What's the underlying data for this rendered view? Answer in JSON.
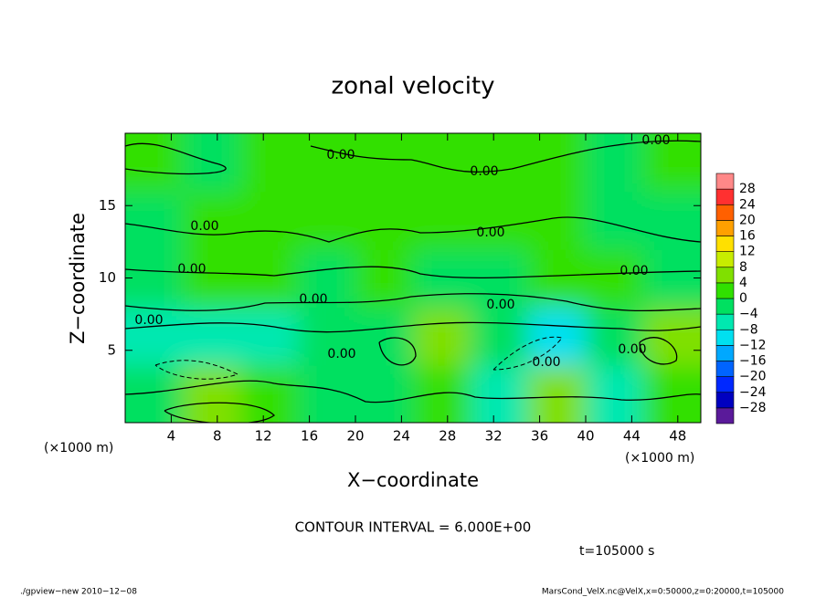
{
  "chart_data": {
    "type": "contour",
    "title": "zonal velocity",
    "xlabel": "X−coordinate",
    "ylabel": "Z−coordinate",
    "x_unit_labels": [
      "(×1000 m)",
      "(×1000 m)"
    ],
    "xlim": [
      0,
      50
    ],
    "xticks": [
      4,
      8,
      12,
      16,
      20,
      24,
      28,
      32,
      36,
      40,
      44,
      48
    ],
    "ylim": [
      0,
      20
    ],
    "yticks": [
      5,
      10,
      15
    ],
    "field": {
      "x": [
        2.5,
        7.5,
        12.5,
        17.5,
        22.5,
        27.5,
        32.5,
        37.5,
        42.5,
        47.5
      ],
      "z": [
        2,
        6,
        10,
        14,
        18
      ],
      "values": [
        [
          -4,
          4,
          2,
          -4,
          -2,
          2,
          -6,
          4,
          -6,
          2
        ],
        [
          -8,
          -6,
          -6,
          -2,
          -4,
          6,
          -4,
          -10,
          -4,
          6
        ],
        [
          -2,
          0,
          0,
          -2,
          0,
          -2,
          -2,
          0,
          0,
          -2
        ],
        [
          -2,
          0,
          2,
          0,
          0,
          2,
          0,
          0,
          -2,
          -2
        ],
        [
          0,
          -2,
          2,
          0,
          0,
          2,
          2,
          0,
          -2,
          0
        ]
      ]
    },
    "colorbar": {
      "bounds": [
        -32,
        -28,
        -24,
        -20,
        -16,
        -12,
        -8,
        -4,
        0,
        4,
        8,
        12,
        16,
        20,
        24,
        28,
        32
      ],
      "colors": [
        "#5a1a9a",
        "#0000c0",
        "#0028ff",
        "#0064ff",
        "#00a8ff",
        "#00e0f0",
        "#00e8b0",
        "#00e060",
        "#30e000",
        "#80e000",
        "#c8ec00",
        "#ffe000",
        "#ffa000",
        "#ff6000",
        "#ff3030",
        "#ff8888"
      ],
      "ticks": [
        {
          "value": -28,
          "label": "−28"
        },
        {
          "value": -24,
          "label": "−24"
        },
        {
          "value": -20,
          "label": "−20"
        },
        {
          "value": -16,
          "label": "−16"
        },
        {
          "value": -12,
          "label": "−12"
        },
        {
          "value": -8,
          "label": "−8"
        },
        {
          "value": -4,
          "label": "−4"
        },
        0,
        4,
        8,
        12,
        16,
        20,
        24,
        28
      ]
    },
    "contour_labels": [
      "0.00",
      "0.00",
      "0.00",
      "0.00",
      "0.00",
      "0.00",
      "0.00",
      "0.00",
      "0.00",
      "0.00",
      "0.00",
      "0.00",
      "0.00"
    ],
    "contour_interval": "CONTOUR INTERVAL = 6.000E+00",
    "time": "t=105000 s",
    "footer_left": "./gpview−new   2010−12−08",
    "footer_right": "MarsCond_VelX.nc@VelX,x=0:50000,z=0:20000,t=105000"
  }
}
